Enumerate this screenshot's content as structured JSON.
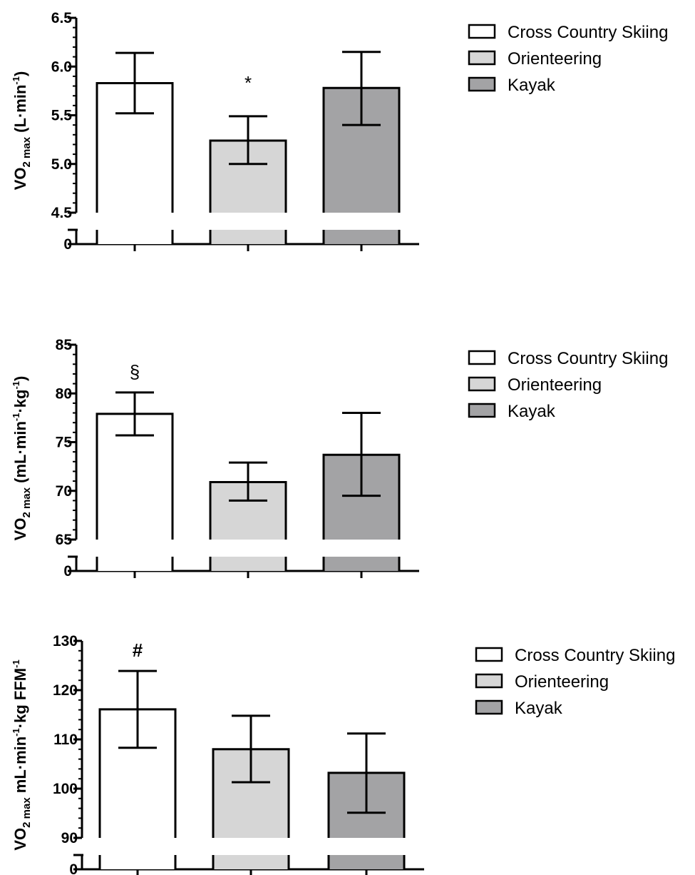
{
  "legend": {
    "entries": [
      {
        "label": "Cross Country Skiing",
        "color": "#ffffff"
      },
      {
        "label": "Orienteering",
        "color": "#d6d6d6"
      },
      {
        "label": "Kayak",
        "color": "#a3a3a5"
      }
    ]
  },
  "chart_data": [
    {
      "type": "bar",
      "categories": [
        "Cross Country Skiing",
        "Orienteering",
        "Kayak"
      ],
      "values": [
        5.83,
        5.24,
        5.78
      ],
      "error_low": [
        5.52,
        5.0,
        5.4
      ],
      "error_high": [
        6.14,
        5.49,
        6.15
      ],
      "annotations": [
        "",
        "*",
        ""
      ],
      "ylabel": {
        "main": "VO",
        "sub": "2 max",
        "unit_before": "(L·min",
        "sup": "-1",
        "unit_after": ")"
      },
      "ylim": [
        4.5,
        6.5
      ],
      "axis_break": {
        "below": 4.5,
        "baseline": 0
      },
      "yticks": [
        {
          "value": 0,
          "label": "0"
        },
        {
          "value": 4.5,
          "label": "4.5"
        },
        {
          "value": 5.0,
          "label": "5.0"
        },
        {
          "value": 5.5,
          "label": "5.5"
        },
        {
          "value": 6.0,
          "label": "6.0"
        },
        {
          "value": 6.5,
          "label": "6.5"
        }
      ],
      "minor_step": 0.1,
      "grid": false
    },
    {
      "type": "bar",
      "categories": [
        "Cross Country Skiing",
        "Orienteering",
        "Kayak"
      ],
      "values": [
        77.9,
        70.9,
        73.7
      ],
      "error_low": [
        75.7,
        69.0,
        69.5
      ],
      "error_high": [
        80.1,
        72.9,
        78.0
      ],
      "annotations": [
        "§",
        "",
        ""
      ],
      "ylabel": {
        "main": "VO",
        "sub": "2 max",
        "unit_before": "(mL·min",
        "sup": "-1",
        "unit_mid": "·kg",
        "sup2": "-1",
        "unit_after": ")"
      },
      "ylim": [
        65,
        85
      ],
      "axis_break": {
        "below": 65,
        "baseline": 0
      },
      "yticks": [
        {
          "value": 0,
          "label": "0"
        },
        {
          "value": 65,
          "label": "65"
        },
        {
          "value": 70,
          "label": "70"
        },
        {
          "value": 75,
          "label": "75"
        },
        {
          "value": 80,
          "label": "80"
        },
        {
          "value": 85,
          "label": "85"
        }
      ],
      "minor_step": 1,
      "grid": false
    },
    {
      "type": "bar",
      "categories": [
        "Cross Country Skiing",
        "Orienteering",
        "Kayak"
      ],
      "values": [
        116.1,
        108.0,
        103.2
      ],
      "error_low": [
        108.3,
        101.3,
        95.1
      ],
      "error_high": [
        123.9,
        114.8,
        111.2
      ],
      "annotations": [
        "#",
        "",
        ""
      ],
      "ylabel": {
        "main": "VO",
        "sub": "2 max",
        "unit_before": "mL·min",
        "sup": "-1",
        "unit_mid": "·kg FFM",
        "sup2": "-1",
        "unit_after": ""
      },
      "ylim": [
        90,
        130
      ],
      "axis_break": {
        "below": 90,
        "baseline": 0
      },
      "yticks": [
        {
          "value": 0,
          "label": "0"
        },
        {
          "value": 90,
          "label": "90"
        },
        {
          "value": 100,
          "label": "100"
        },
        {
          "value": 110,
          "label": "110"
        },
        {
          "value": 120,
          "label": "120"
        },
        {
          "value": 130,
          "label": "130"
        }
      ],
      "minor_step": 2,
      "grid": false
    }
  ]
}
